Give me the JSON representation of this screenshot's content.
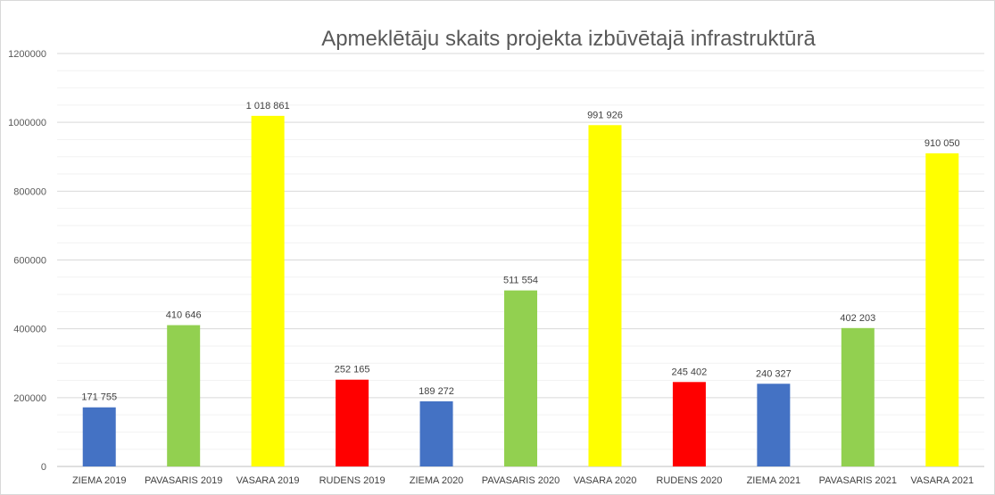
{
  "chart_data": {
    "type": "bar",
    "title": "Apmeklētāju skaits projekta izbūvētajā infrastruktūrā",
    "xlabel": "",
    "ylabel": "",
    "ylim": [
      0,
      1200000
    ],
    "yticks": [
      0,
      200000,
      400000,
      600000,
      800000,
      1000000,
      1200000
    ],
    "ytick_labels": [
      "0",
      "200000",
      "400000",
      "600000",
      "800000",
      "1000000",
      "1200000"
    ],
    "grid": true,
    "legend": "none",
    "categories": [
      "ZIEMA 2019",
      "PAVASARIS 2019",
      "VASARA 2019",
      "RUDENS 2019",
      "ZIEMA 2020",
      "PAVASARIS 2020",
      "VASARA 2020",
      "RUDENS 2020",
      "ZIEMA 2021",
      "PAVASARIS 2021",
      "VASARA 2021"
    ],
    "values": [
      171755,
      410646,
      1018861,
      252165,
      189272,
      511554,
      991926,
      245402,
      240327,
      402203,
      910050
    ],
    "value_labels": [
      "171 755",
      "410 646",
      "1 018 861",
      "252 165",
      "189 272",
      "511 554",
      "991 926",
      "245 402",
      "240 327",
      "402 203",
      "910 050"
    ],
    "colors": [
      "#4472c4",
      "#92d050",
      "#ffff00",
      "#ff0000",
      "#4472c4",
      "#92d050",
      "#ffff00",
      "#ff0000",
      "#4472c4",
      "#92d050",
      "#ffff00"
    ]
  }
}
